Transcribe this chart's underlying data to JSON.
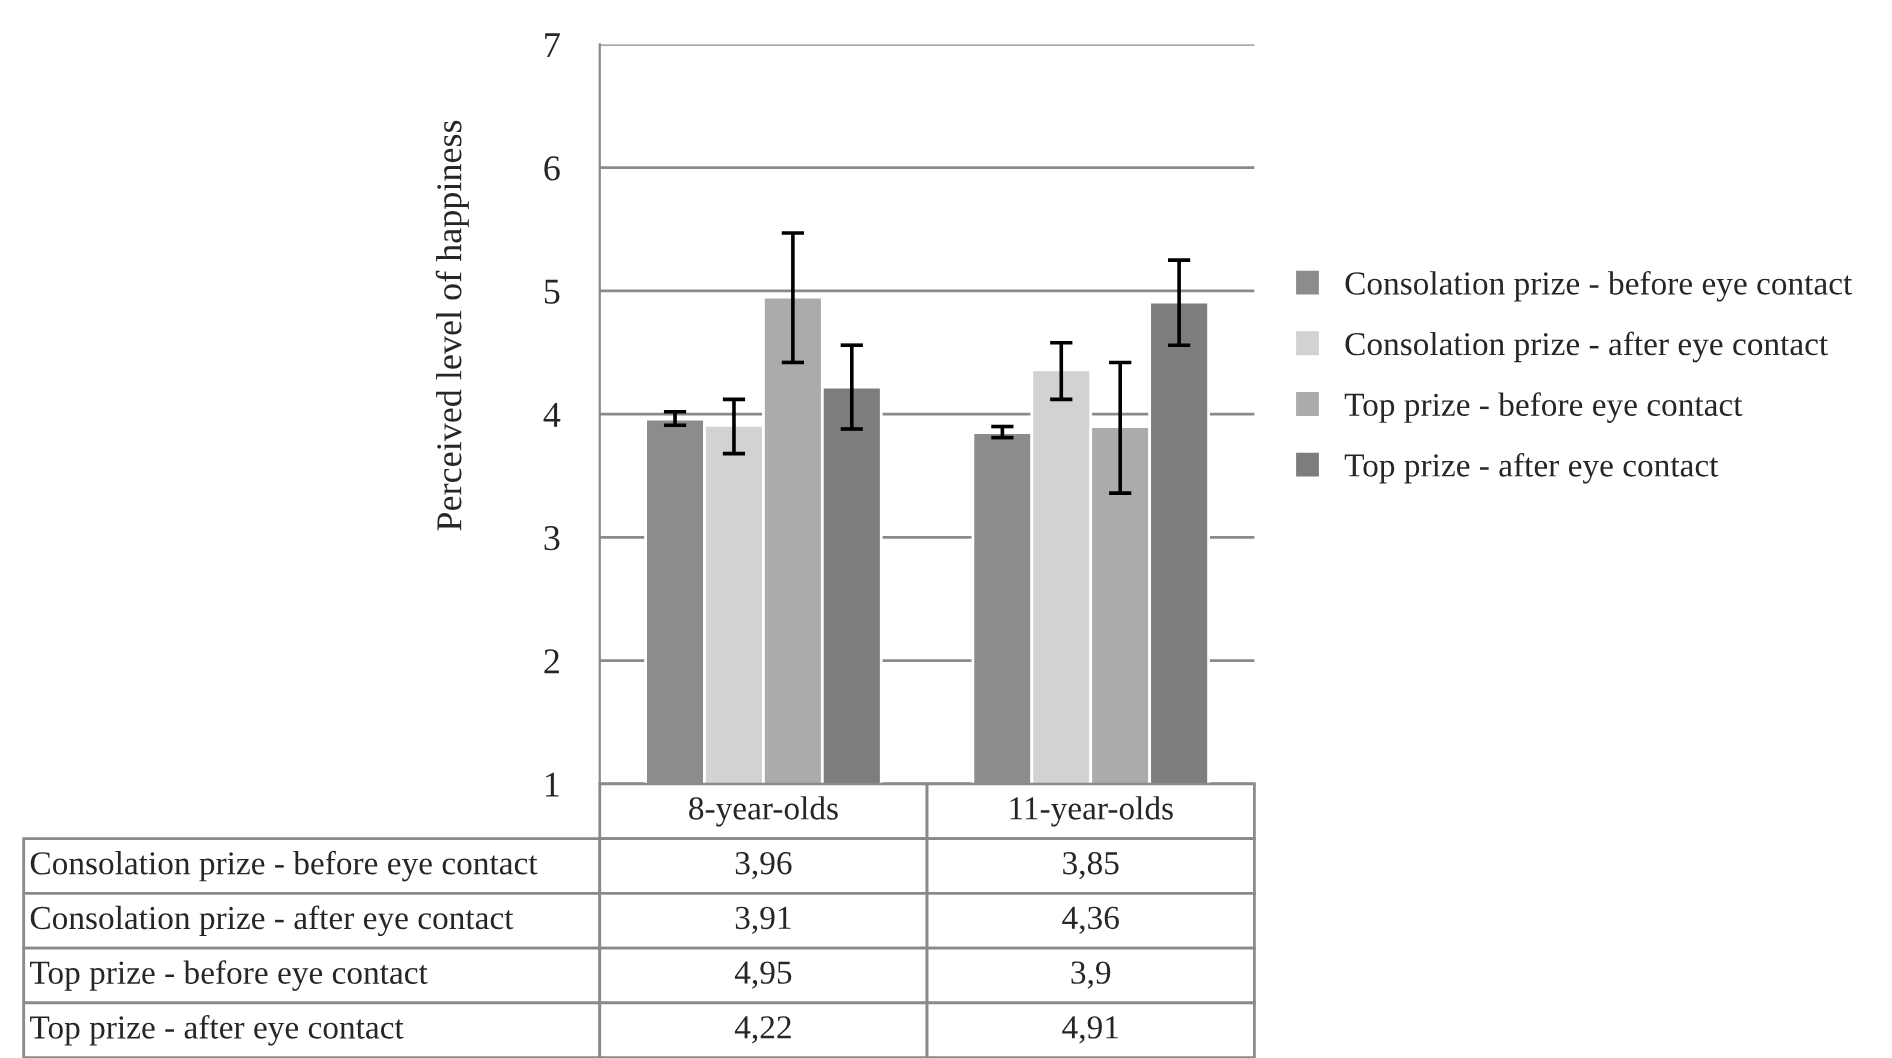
{
  "chart_data": {
    "type": "bar",
    "ylabel": "Perceived level of happiness",
    "categories": [
      "8-year-olds",
      "11-year-olds"
    ],
    "series": [
      {
        "name": "Consolation prize - before eye contact",
        "color": "#8c8c8c",
        "values": [
          3.96,
          3.85
        ],
        "value_labels": [
          "3,96",
          "3,85"
        ],
        "errors": [
          [
            3.91,
            4.02
          ],
          [
            3.81,
            3.9
          ]
        ]
      },
      {
        "name": "Consolation prize - after eye contact",
        "color": "#d2d2d2",
        "values": [
          3.91,
          4.36
        ],
        "value_labels": [
          "3,91",
          "4,36"
        ],
        "errors": [
          [
            3.68,
            4.12
          ],
          [
            4.12,
            4.58
          ]
        ]
      },
      {
        "name": "Top prize - before eye contact",
        "color": "#ababab",
        "values": [
          4.95,
          3.9
        ],
        "value_labels": [
          "4,95",
          "3,9"
        ],
        "errors": [
          [
            4.42,
            5.47
          ],
          [
            3.36,
            4.42
          ]
        ]
      },
      {
        "name": "Top prize - after eye contact",
        "color": "#7d7d7d",
        "values": [
          4.22,
          4.91
        ],
        "value_labels": [
          "4,22",
          "4,91"
        ],
        "errors": [
          [
            3.88,
            4.56
          ],
          [
            4.56,
            5.25
          ]
        ]
      }
    ],
    "ylim": [
      1,
      7
    ],
    "yticks": [
      1,
      2,
      3,
      4,
      5,
      6,
      7
    ],
    "grid": "y",
    "legend": "right"
  }
}
